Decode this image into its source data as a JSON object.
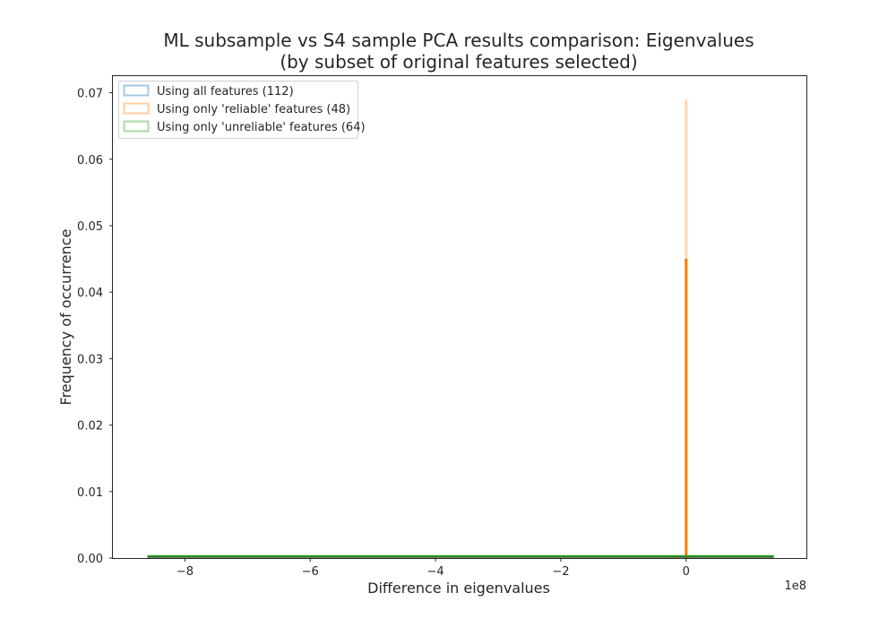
{
  "chart_data": {
    "type": "bar",
    "title": "ML subsample vs S4 sample PCA results comparison: Eigenvalues",
    "subtitle": "(by subset of original features selected)",
    "xlabel": "Difference in eigenvalues",
    "ylabel": "Frequency of occurrence",
    "x_offset_label": "1e8",
    "xlim": [
      -9.15,
      1.92
    ],
    "ylim": [
      0,
      0.0725
    ],
    "xticks": [
      -8,
      -6,
      -4,
      -2,
      0
    ],
    "xtick_labels": [
      "−8",
      "−6",
      "−4",
      "−2",
      "0"
    ],
    "yticks": [
      0,
      0.01,
      0.02,
      0.03,
      0.04,
      0.05,
      0.06,
      0.07
    ],
    "ytick_labels": [
      "0.00",
      "0.01",
      "0.02",
      "0.03",
      "0.04",
      "0.05",
      "0.06",
      "0.07"
    ],
    "grid": false,
    "legend_position": "upper-left",
    "series": [
      {
        "name": "Using all features (112)",
        "color": "#1f77b4",
        "style": "step-outline",
        "x_range": [
          -8.6,
          1.4
        ],
        "peak_x": 0,
        "peak_y": 0.045
      },
      {
        "name": "Using only 'reliable' features (48)",
        "color": "#ff7f0e",
        "style": "step-outline",
        "x_range": [
          -8.6,
          1.4
        ],
        "peak_x": 0,
        "peak_y": 0.069,
        "solid_peak_y": 0.045
      },
      {
        "name": "Using only 'unreliable' features (64)",
        "color": "#2ca02c",
        "style": "step-outline",
        "x_range": [
          -8.6,
          1.4
        ],
        "peak_x": 0,
        "peak_y": 0.0003
      }
    ]
  }
}
